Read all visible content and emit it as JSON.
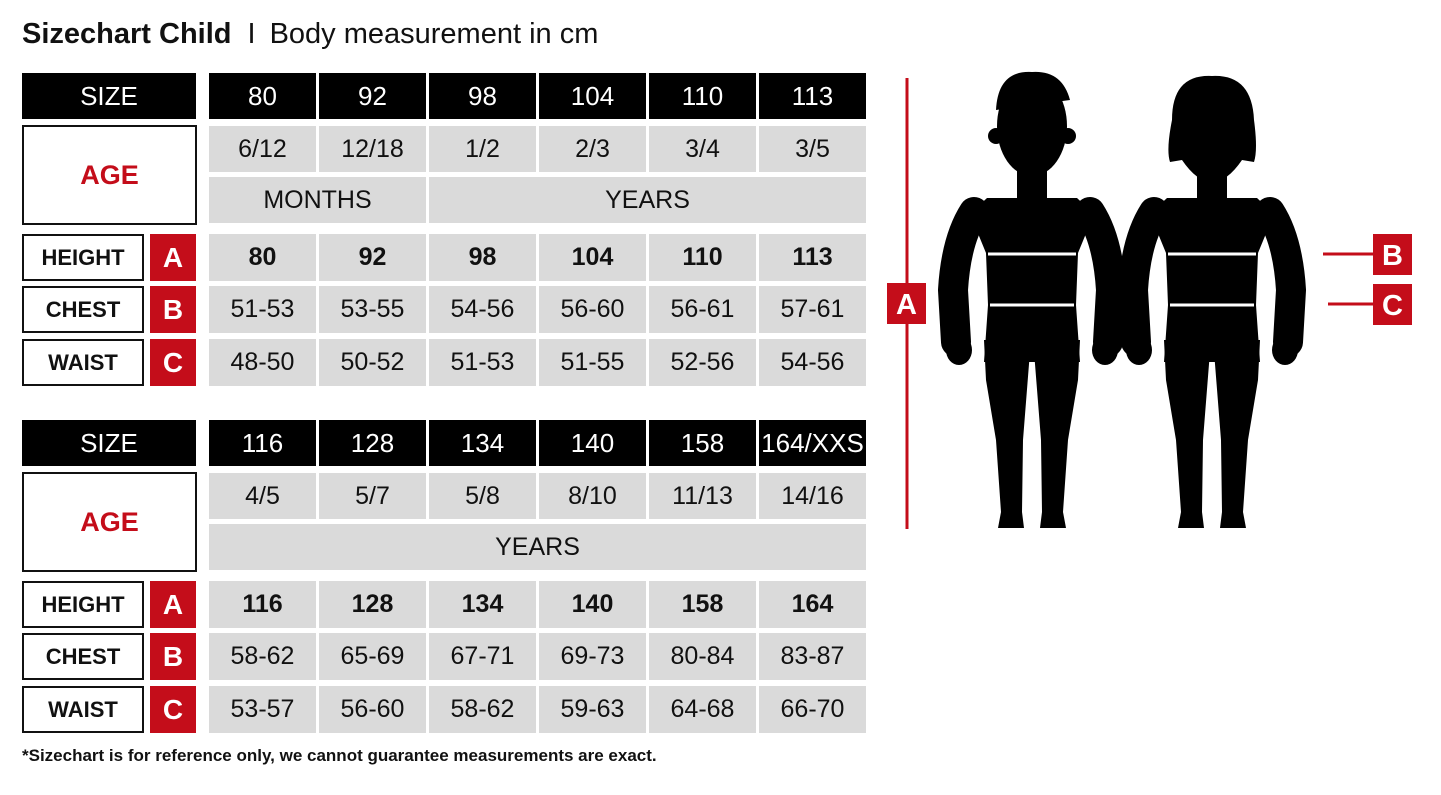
{
  "header": {
    "title": "Sizechart Child",
    "separator": "I",
    "subtitle": "Body measurement in cm"
  },
  "tables": [
    {
      "size_label": "SIZE",
      "sizes": [
        "80",
        "92",
        "98",
        "104",
        "110",
        "113"
      ],
      "age_label": "AGE",
      "ages": [
        "6/12",
        "12/18",
        "1/2",
        "2/3",
        "3/4",
        "3/5"
      ],
      "age_units": [
        {
          "label": "MONTHS",
          "span": 2
        },
        {
          "label": "YEARS",
          "span": 4
        }
      ],
      "rows": [
        {
          "label": "HEIGHT",
          "letter": "A",
          "values": [
            "80",
            "92",
            "98",
            "104",
            "110",
            "113"
          ]
        },
        {
          "label": "CHEST",
          "letter": "B",
          "values": [
            "51-53",
            "53-55",
            "54-56",
            "56-60",
            "56-61",
            "57-61"
          ]
        },
        {
          "label": "WAIST",
          "letter": "C",
          "values": [
            "48-50",
            "50-52",
            "51-53",
            "51-55",
            "52-56",
            "54-56"
          ]
        }
      ]
    },
    {
      "size_label": "SIZE",
      "sizes": [
        "116",
        "128",
        "134",
        "140",
        "158",
        "164/XXS"
      ],
      "age_label": "AGE",
      "ages": [
        "4/5",
        "5/7",
        "5/8",
        "8/10",
        "11/13",
        "14/16"
      ],
      "age_units": [
        {
          "label": "YEARS",
          "span": 6
        }
      ],
      "rows": [
        {
          "label": "HEIGHT",
          "letter": "A",
          "values": [
            "116",
            "128",
            "134",
            "140",
            "158",
            "164"
          ]
        },
        {
          "label": "CHEST",
          "letter": "B",
          "values": [
            "58-62",
            "65-69",
            "67-71",
            "69-73",
            "80-84",
            "83-87"
          ]
        },
        {
          "label": "WAIST",
          "letter": "C",
          "values": [
            "53-57",
            "56-60",
            "58-62",
            "59-63",
            "64-68",
            "66-70"
          ]
        }
      ]
    }
  ],
  "diagram": {
    "height_letter": "A",
    "chest_letter": "B",
    "waist_letter": "C",
    "figures": [
      "boy-silhouette",
      "girl-silhouette"
    ]
  },
  "footnote": "*Sizechart is for reference only, we cannot guarantee measurements are exact.",
  "colors": {
    "accent_red": "#c40d1a",
    "header_black": "#000000",
    "cell_gray": "#dadada"
  }
}
